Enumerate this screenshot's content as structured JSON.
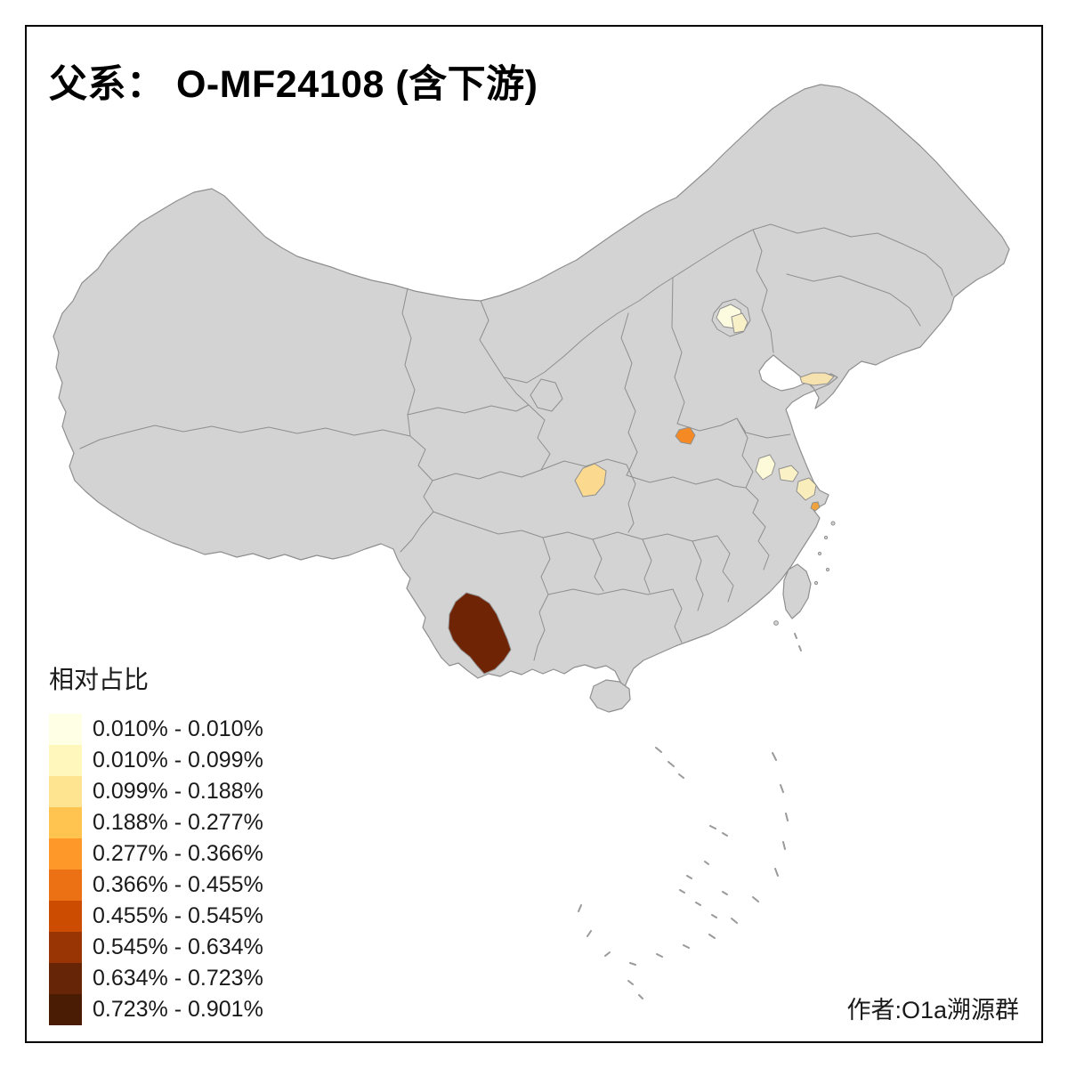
{
  "title": "父系： O-MF24108 (含下游)",
  "credit": "作者:O1a溯源群",
  "frame_color": "#000000",
  "legend": {
    "title": "相对占比",
    "classes": [
      {
        "label": "0.010% - 0.010%",
        "color": "#FFFFE5"
      },
      {
        "label": "0.010% - 0.099%",
        "color": "#FFF7BC"
      },
      {
        "label": "0.099% - 0.188%",
        "color": "#FEE391"
      },
      {
        "label": "0.188% - 0.277%",
        "color": "#FEC44F"
      },
      {
        "label": "0.277% - 0.366%",
        "color": "#FE9929"
      },
      {
        "label": "0.366% - 0.455%",
        "color": "#EC7014"
      },
      {
        "label": "0.455% - 0.545%",
        "color": "#CC4C02"
      },
      {
        "label": "0.545% - 0.634%",
        "color": "#993404"
      },
      {
        "label": "0.634% - 0.723%",
        "color": "#662506"
      },
      {
        "label": "0.723% - 0.901%",
        "color": "#4A1C03"
      }
    ]
  },
  "map": {
    "base_fill": "#D3D3D3",
    "border_color": "#8F8F8F",
    "island_mark_color": "#9A9A9A",
    "sea_color": "#FFFFFF",
    "regions": [
      {
        "name": "yunnan-dark",
        "color": "#6F2405"
      },
      {
        "name": "henan-orange",
        "color": "#F58A25"
      },
      {
        "name": "chongqing-tan",
        "color": "#FBD98E"
      },
      {
        "name": "beijing-pale-west",
        "color": "#FCFADF"
      },
      {
        "name": "beijing-pale-east",
        "color": "#F8F1C8"
      },
      {
        "name": "shandong-tip-tan",
        "color": "#F6E2AE"
      },
      {
        "name": "jiangsu-north-pale",
        "color": "#FDFAD9"
      },
      {
        "name": "jiangsu-mid-pale",
        "color": "#FAF2C6"
      },
      {
        "name": "suzhou-shanghai-pale",
        "color": "#FAEDBC"
      },
      {
        "name": "zhejiang-coast-speck",
        "color": "#EFA23E"
      }
    ]
  }
}
